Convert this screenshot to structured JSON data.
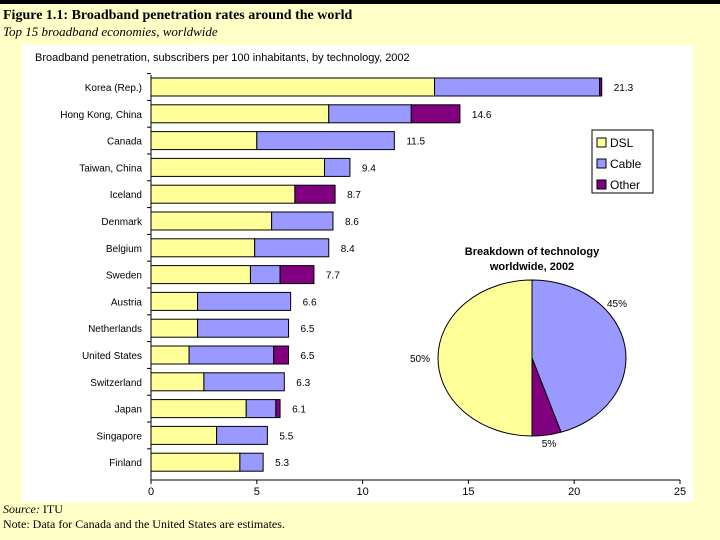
{
  "figure": {
    "title": "Figure 1.1: Broadband penetration rates around the world",
    "subtitle": "Top 15 broadband economies, worldwide",
    "source_label": "Source:",
    "source_value": " ITU",
    "note": "Note: Data for Canada and the United States are estimates."
  },
  "colors": {
    "DSL": "#ffff99",
    "Cable": "#9999ff",
    "Other": "#800080"
  },
  "chart_data": [
    {
      "type": "bar",
      "orientation": "horizontal",
      "stacked": true,
      "title": "Broadband penetration, subscribers per 100 inhabitants, by technology, 2002",
      "categories": [
        "Korea (Rep.)",
        "Hong Kong, China",
        "Canada",
        "Taiwan, China",
        "Iceland",
        "Denmark",
        "Belgium",
        "Sweden",
        "Austria",
        "Netherlands",
        "United States",
        "Switzerland",
        "Japan",
        "Singapore",
        "Finland"
      ],
      "series": [
        {
          "name": "DSL",
          "values": [
            13.4,
            8.4,
            5.0,
            8.2,
            6.8,
            5.7,
            4.9,
            4.7,
            2.2,
            2.2,
            1.8,
            2.5,
            4.5,
            3.1,
            4.2
          ]
        },
        {
          "name": "Cable",
          "values": [
            7.8,
            3.9,
            6.5,
            1.2,
            0.0,
            2.9,
            3.5,
            1.4,
            4.4,
            4.3,
            4.0,
            3.8,
            1.4,
            2.4,
            1.1
          ]
        },
        {
          "name": "Other",
          "values": [
            0.1,
            2.3,
            0.0,
            0.0,
            1.9,
            0.0,
            0.0,
            1.6,
            0.0,
            0.0,
            0.7,
            0.0,
            0.2,
            0.0,
            0.0
          ]
        }
      ],
      "totals_labels": [
        "21.3",
        "14.6",
        "11.5",
        "9.4",
        "8.7",
        "8.6",
        "8.4",
        "7.7",
        "6.6",
        "6.5",
        "6.5",
        "6.3",
        "6.1",
        "5.5",
        "5.3"
      ],
      "xlim": [
        0,
        25
      ],
      "xticks": [
        "0",
        "5",
        "10",
        "15",
        "20",
        "25"
      ],
      "legend": [
        "DSL",
        "Cable",
        "Other"
      ],
      "legend_position": "right"
    },
    {
      "type": "pie",
      "title_line1": "Breakdown of technology",
      "title_line2": "worldwide, 2002",
      "labels": [
        "Cable",
        "Other",
        "DSL"
      ],
      "values": [
        45,
        5,
        50
      ],
      "value_labels": [
        "45%",
        "5%",
        "50%"
      ]
    }
  ]
}
